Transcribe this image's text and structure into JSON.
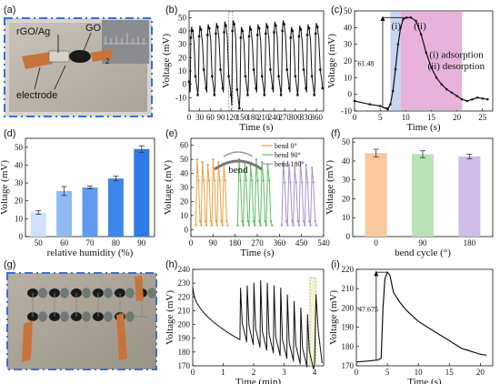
{
  "panels": {
    "a": {
      "label": "(a)",
      "texts": [
        "rGO/Ag",
        "GO",
        "electrode",
        "2"
      ]
    },
    "b": {
      "label": "(b)"
    },
    "c": {
      "label": "(c)"
    },
    "d": {
      "label": "(d)"
    },
    "e": {
      "label": "(e)",
      "inset": "bend"
    },
    "f": {
      "label": "(f)"
    },
    "g": {
      "label": "(g)"
    },
    "h": {
      "label": "(h)"
    },
    "i": {
      "label": "(i)"
    }
  },
  "colors": {
    "dash_border": "#3a6fd8",
    "blue_bar": "#2f7be8",
    "orange": "#f0a040",
    "green": "#5fc15f",
    "purple": "#a98fd8",
    "shade_blue": "#c7d6f2",
    "shade_pink": "#e7b3da"
  },
  "chart_data": [
    {
      "id": "b",
      "type": "line",
      "xlabel": "Time (s)",
      "ylabel": "Voltage (mV)",
      "xlim": [
        0,
        380
      ],
      "ylim": [
        -20,
        55
      ],
      "xticks": [
        0,
        30,
        60,
        90,
        120,
        150,
        180,
        210,
        240,
        270,
        300,
        330,
        360
      ],
      "yticks": [
        -10,
        0,
        10,
        20,
        30,
        40,
        50
      ],
      "cycles": {
        "start": 2,
        "period": 23.5,
        "count": 16,
        "peak": [
          43,
          48
        ],
        "baseline": [
          -8,
          5
        ]
      },
      "highlight_x": [
        112,
        123
      ]
    },
    {
      "id": "c",
      "type": "line",
      "xlabel": "Time (s)",
      "ylabel": "Voltage (mV)",
      "xlim": [
        0,
        27
      ],
      "ylim": [
        -10,
        50
      ],
      "xticks": [
        0,
        5,
        10,
        15,
        20,
        25
      ],
      "yticks": [
        -10,
        0,
        10,
        20,
        30,
        40,
        50
      ],
      "points": [
        [
          0,
          -4
        ],
        [
          3,
          -6
        ],
        [
          5,
          -7
        ],
        [
          6.5,
          -9
        ],
        [
          7,
          -6
        ],
        [
          7.5,
          2
        ],
        [
          8,
          15
        ],
        [
          8.5,
          30
        ],
        [
          9,
          40
        ],
        [
          9.5,
          45
        ],
        [
          10.2,
          46
        ],
        [
          11,
          46
        ],
        [
          12,
          44
        ],
        [
          13,
          36
        ],
        [
          14,
          25
        ],
        [
          15,
          16
        ],
        [
          16,
          10
        ],
        [
          17,
          6
        ],
        [
          18,
          3
        ],
        [
          19,
          1
        ],
        [
          20,
          -1
        ],
        [
          21,
          -3
        ],
        [
          22,
          -4
        ],
        [
          23,
          -3
        ],
        [
          24,
          -2
        ],
        [
          25,
          -2.5
        ],
        [
          26,
          -3
        ]
      ],
      "shade_adsorption": [
        7,
        9
      ],
      "shade_desorption": [
        9,
        21
      ],
      "annotation_value": "61.48",
      "legend": [
        "(i)",
        "(ii)",
        "(i)  adsorption",
        "(ii) desorption"
      ]
    },
    {
      "id": "d",
      "type": "bar",
      "xlabel": "relative humidity (%)",
      "ylabel": "Voltage (mV)",
      "categories": [
        "50",
        "60",
        "70",
        "80",
        "90"
      ],
      "values": [
        13.5,
        25.5,
        27.5,
        32.5,
        49
      ],
      "errors": [
        1,
        2.5,
        0.8,
        1.3,
        1.8
      ],
      "ylim": [
        0,
        55
      ],
      "yticks": [
        0,
        10,
        20,
        30,
        40,
        50
      ]
    },
    {
      "id": "e",
      "type": "line",
      "xlabel": "Time (s)",
      "ylabel": "Voltage (mV)",
      "xlim": [
        0,
        540
      ],
      "ylim": [
        -5,
        65
      ],
      "xticks": [
        0,
        90,
        180,
        270,
        360,
        450,
        540
      ],
      "yticks": [
        0,
        10,
        20,
        30,
        40,
        50,
        60
      ],
      "series": [
        {
          "name": "bend 0°",
          "x_range": [
            20,
            150
          ],
          "peak": 50,
          "cycles": 6
        },
        {
          "name": "bend 90°",
          "x_range": [
            190,
            330
          ],
          "peak": 50,
          "cycles": 6
        },
        {
          "name": "bend 180°",
          "x_range": [
            370,
            510
          ],
          "peak": 48,
          "cycles": 6
        }
      ]
    },
    {
      "id": "f",
      "type": "bar",
      "xlabel": "bend cycle (°)",
      "ylabel": "Voltage (mV)",
      "categories": [
        "0",
        "90",
        "180"
      ],
      "values": [
        44.2,
        43.6,
        42.4
      ],
      "errors": [
        2,
        1.8,
        1.2
      ],
      "ylim": [
        0,
        52
      ],
      "yticks": [
        0,
        10,
        20,
        30,
        40,
        50
      ]
    },
    {
      "id": "h",
      "type": "line",
      "xlabel": "Time (min)",
      "ylabel": "Voltage (mV)",
      "xlim": [
        0,
        4.3
      ],
      "ylim": [
        170,
        240
      ],
      "xticks": [
        0,
        1,
        2,
        3,
        4
      ],
      "yticks": [
        170,
        180,
        190,
        200,
        210,
        220,
        230,
        240
      ],
      "start_y": 227,
      "spike_start": 1.55,
      "spike_period": 0.22,
      "spikes": 11,
      "highlight_x": [
        3.85,
        4.05
      ]
    },
    {
      "id": "i",
      "type": "line",
      "xlabel": "Time (s)",
      "ylabel": "Voltage (mV)",
      "xlim": [
        0,
        22
      ],
      "ylim": [
        170,
        220
      ],
      "xticks": [
        0,
        5,
        10,
        15,
        20
      ],
      "yticks": [
        170,
        180,
        190,
        200,
        210,
        220
      ],
      "points": [
        [
          0,
          172
        ],
        [
          2,
          172.5
        ],
        [
          3.5,
          173
        ],
        [
          4,
          174
        ],
        [
          4.3,
          200
        ],
        [
          4.6,
          215
        ],
        [
          5,
          218.5
        ],
        [
          5.4,
          217
        ],
        [
          6,
          208
        ],
        [
          7,
          203
        ],
        [
          8,
          199
        ],
        [
          9,
          196
        ],
        [
          10,
          193
        ],
        [
          11,
          191
        ],
        [
          12,
          189
        ],
        [
          13,
          187
        ],
        [
          14,
          185
        ],
        [
          15,
          183
        ],
        [
          16,
          181
        ],
        [
          17,
          179
        ],
        [
          18,
          178
        ],
        [
          19,
          177
        ],
        [
          20,
          176
        ],
        [
          21,
          175.5
        ]
      ],
      "annotation_value": "47.675"
    }
  ]
}
